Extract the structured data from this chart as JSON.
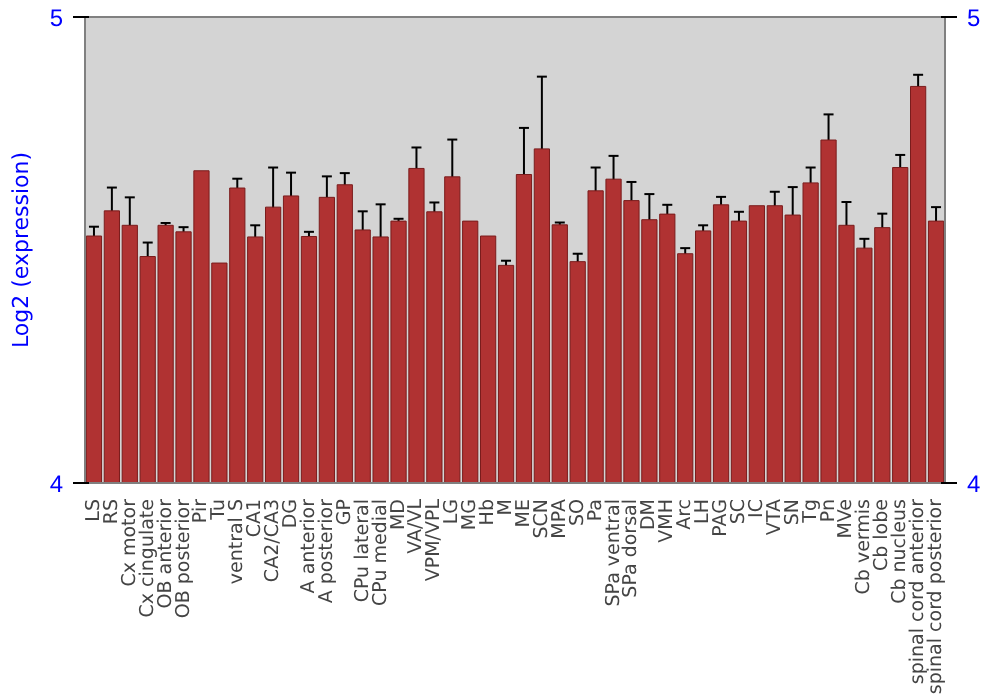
{
  "chart_data": {
    "type": "bar",
    "ylabel": "Log2 (expression)",
    "categories": [
      "LS",
      "RS",
      "Cx motor",
      "Cx cingulate",
      "OB anterior",
      "OB posterior",
      "Pir",
      "Tu",
      "ventral S",
      "CA1",
      "CA2/CA3",
      "DG",
      "A anterior",
      "A posterior",
      "GP",
      "CPu lateral",
      "CPu medial",
      "MD",
      "VA/VL",
      "VPM/VPL",
      "LG",
      "MG",
      "Hb",
      "M",
      "ME",
      "SCN",
      "MPA",
      "SO",
      "Pa",
      "SPa ventral",
      "SPa dorsal",
      "DM",
      "VMH",
      "Arc",
      "LH",
      "PAG",
      "SC",
      "IC",
      "VTA",
      "SN",
      "Tg",
      "Pn",
      "MVe",
      "Cb vermis",
      "Cb lobe",
      "Cb nucleus",
      "spinal cord anterior",
      "spinal cord posterior"
    ],
    "values": [
      4.53,
      4.584,
      4.553,
      4.486,
      4.553,
      4.539,
      4.67,
      4.472,
      4.633,
      4.528,
      4.592,
      4.616,
      4.529,
      4.613,
      4.64,
      4.543,
      4.528,
      4.562,
      4.675,
      4.582,
      4.657,
      4.562,
      4.53,
      4.467,
      4.662,
      4.717,
      4.554,
      4.475,
      4.627,
      4.652,
      4.606,
      4.565,
      4.577,
      4.492,
      4.541,
      4.597,
      4.562,
      4.595,
      4.595,
      4.575,
      4.644,
      4.736,
      4.553,
      4.504,
      4.548,
      4.677,
      4.851,
      4.562
    ],
    "errors": [
      0.02,
      0.05,
      0.06,
      0.03,
      0.005,
      0.01,
      null,
      null,
      0.02,
      0.025,
      0.085,
      0.05,
      0.01,
      0.045,
      0.025,
      0.04,
      0.07,
      0.005,
      0.045,
      0.02,
      0.08,
      null,
      null,
      0.01,
      0.1,
      0.155,
      0.005,
      0.017,
      0.05,
      0.05,
      0.04,
      0.055,
      0.02,
      0.012,
      0.012,
      0.017,
      0.02,
      null,
      0.03,
      0.06,
      0.033,
      0.055,
      0.05,
      0.02,
      0.03,
      0.027,
      0.025,
      0.03
    ],
    "color": "#b03232",
    "ylim": [
      4,
      5
    ],
    "yticks": [
      4,
      5
    ],
    "y2lim": [
      4,
      5
    ],
    "y2ticks": [
      4,
      5
    ],
    "grid": false
  }
}
